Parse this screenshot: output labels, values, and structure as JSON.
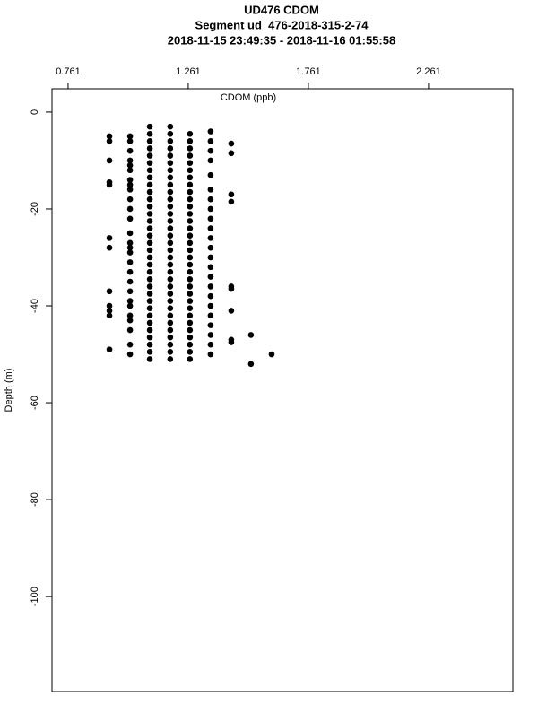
{
  "chart_data": {
    "type": "scatter",
    "title": "UD476 CDOM",
    "subtitle": "Segment ud_476-2018-315-2-74",
    "subtitle2": "2018-11-15 23:49:35 - 2018-11-16 01:55:58",
    "x_label": "CDOM (ppb)",
    "y_label": "Depth (m)",
    "xlim": [
      0.694,
      2.612
    ],
    "ylim": [
      -119.6,
      4.8
    ],
    "xticks": [
      0.761,
      1.261,
      1.761,
      2.261
    ],
    "yticks": [
      0,
      -20,
      -40,
      -60,
      -80,
      -100
    ],
    "color": "#000000",
    "x": [
      0.933,
      0.933,
      0.933,
      0.933,
      0.933,
      0.933,
      0.933,
      0.933,
      0.933,
      0.933,
      0.933,
      0.933,
      1.019,
      1.019,
      1.019,
      1.019,
      1.019,
      1.019,
      1.019,
      1.019,
      1.019,
      1.019,
      1.019,
      1.019,
      1.019,
      1.019,
      1.019,
      1.019,
      1.019,
      1.019,
      1.019,
      1.019,
      1.019,
      1.019,
      1.019,
      1.019,
      1.019,
      1.019,
      1.019,
      1.101,
      1.101,
      1.101,
      1.101,
      1.101,
      1.101,
      1.101,
      1.101,
      1.101,
      1.101,
      1.101,
      1.101,
      1.101,
      1.101,
      1.101,
      1.101,
      1.101,
      1.101,
      1.101,
      1.101,
      1.101,
      1.101,
      1.101,
      1.101,
      1.101,
      1.101,
      1.101,
      1.101,
      1.101,
      1.101,
      1.101,
      1.101,
      1.101,
      1.186,
      1.186,
      1.186,
      1.186,
      1.186,
      1.186,
      1.186,
      1.186,
      1.186,
      1.186,
      1.186,
      1.186,
      1.186,
      1.186,
      1.186,
      1.186,
      1.186,
      1.186,
      1.186,
      1.186,
      1.186,
      1.186,
      1.186,
      1.186,
      1.186,
      1.186,
      1.186,
      1.186,
      1.186,
      1.186,
      1.186,
      1.186,
      1.186,
      1.268,
      1.268,
      1.268,
      1.268,
      1.268,
      1.268,
      1.268,
      1.268,
      1.268,
      1.268,
      1.268,
      1.268,
      1.268,
      1.268,
      1.268,
      1.268,
      1.268,
      1.268,
      1.268,
      1.268,
      1.268,
      1.268,
      1.268,
      1.268,
      1.268,
      1.268,
      1.268,
      1.268,
      1.268,
      1.268,
      1.268,
      1.268,
      1.354,
      1.354,
      1.354,
      1.354,
      1.354,
      1.354,
      1.354,
      1.354,
      1.354,
      1.354,
      1.354,
      1.354,
      1.354,
      1.354,
      1.354,
      1.354,
      1.354,
      1.354,
      1.354,
      1.354,
      1.354,
      1.354,
      1.354,
      1.44,
      1.44,
      1.44,
      1.44,
      1.44,
      1.44,
      1.44,
      1.44,
      1.44,
      1.522,
      1.522,
      1.608
    ],
    "y": [
      -5,
      -6,
      -10,
      -14.5,
      -15,
      -26,
      -28,
      -37,
      -40,
      -41,
      -42,
      -49,
      -5,
      -6,
      -8,
      -10,
      -11,
      -12,
      -14,
      -15,
      -16,
      -18,
      -20,
      -22,
      -25,
      -27,
      -28,
      -29,
      -31,
      -33,
      -35,
      -37,
      -39,
      -40,
      -42,
      -43,
      -45,
      -48,
      -50,
      -3,
      -4.5,
      -6,
      -7.5,
      -9,
      -10.5,
      -12,
      -13.5,
      -15,
      -16.5,
      -18,
      -19.5,
      -21,
      -22.5,
      -24,
      -25.5,
      -27,
      -28.5,
      -30,
      -31.5,
      -33,
      -34.5,
      -36,
      -37.5,
      -39,
      -40.5,
      -42,
      -43.5,
      -45,
      -46.5,
      -48,
      -49.5,
      -51,
      -3,
      -4.5,
      -6,
      -7.5,
      -9,
      -10.5,
      -12,
      -13.5,
      -15,
      -16.5,
      -18,
      -19.5,
      -21,
      -22.5,
      -24,
      -25.5,
      -27,
      -28.5,
      -30,
      -31.5,
      -33,
      -34.5,
      -36,
      -37.5,
      -39,
      -40.5,
      -42,
      -43.5,
      -45,
      -46.5,
      -48,
      -49.5,
      -51,
      -4.5,
      -6,
      -7.5,
      -9,
      -10.5,
      -12,
      -13.5,
      -15,
      -16.5,
      -18,
      -19.5,
      -21,
      -22.5,
      -24,
      -25.5,
      -27,
      -28.5,
      -30,
      -31.5,
      -33,
      -34.5,
      -36,
      -37.5,
      -39,
      -40.5,
      -42,
      -43.5,
      -45,
      -46.5,
      -48,
      -49.5,
      -51,
      -4,
      -6,
      -8,
      -10,
      -13,
      -16,
      -18,
      -20,
      -22,
      -24,
      -26,
      -28,
      -30,
      -32,
      -34,
      -36,
      -38,
      -40,
      -42,
      -44,
      -46,
      -48,
      -50,
      -6.5,
      -8.5,
      -17,
      -18.5,
      -36,
      -36.5,
      -41,
      -47,
      -47.5,
      -46,
      -52,
      -50
    ]
  }
}
